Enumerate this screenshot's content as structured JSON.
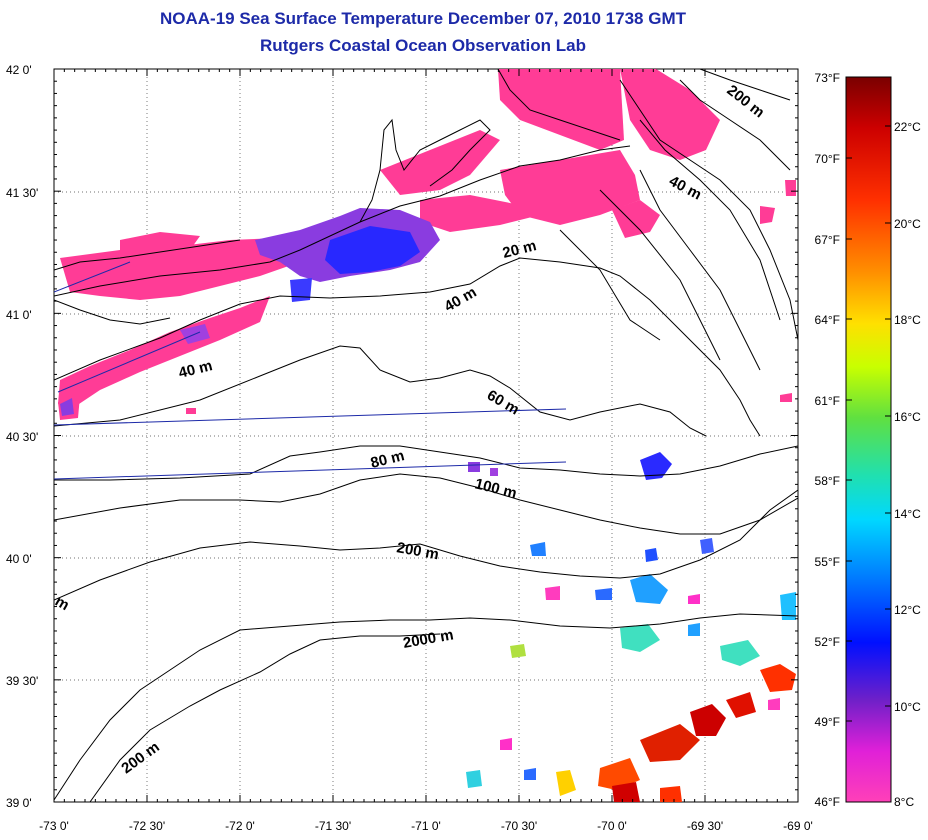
{
  "title": "NOAA-19 Sea Surface Temperature December 07, 2010 1738 GMT",
  "subtitle": "Rutgers Coastal Ocean Observation Lab",
  "lat_ticks": [
    "42 0'",
    "41 30'",
    "41 0'",
    "40 30'",
    "40 0'",
    "39 30'",
    "39 0'"
  ],
  "lon_ticks": [
    "-73 0'",
    "-72 30'",
    "-72 0'",
    "-71 30'",
    "-71 0'",
    "-70 30'",
    "-70 0'",
    "-69 30'",
    "-69 0'"
  ],
  "fahrenheit_ticks": [
    "73°F",
    "70°F",
    "67°F",
    "64°F",
    "61°F",
    "58°F",
    "55°F",
    "52°F",
    "49°F",
    "46°F"
  ],
  "celsius_ticks": [
    "22°C",
    "20°C",
    "18°C",
    "16°C",
    "14°C",
    "12°C",
    "10°C",
    "8°C"
  ],
  "contour_labels": [
    "200 m",
    "40 m",
    "20 m",
    "40 m",
    "40 m",
    "60 m",
    "80 m",
    "100 m",
    "200 m",
    "2000 m",
    "200 m",
    "m"
  ],
  "colorbar_colors": [
    "#8b0000",
    "#d80000",
    "#ff3300",
    "#ff8800",
    "#ffd000",
    "#e8ff00",
    "#8fe000",
    "#40e060",
    "#20e0c0",
    "#00c8ff",
    "#0080ff",
    "#0010ff",
    "#6a2ad0",
    "#c020e0",
    "#ff30c8",
    "#ff3cbe"
  ],
  "sst_colors": {
    "warm_pink": "#ff3c96",
    "cool_blue": "#2828ff",
    "mid_purple": "#8a3ce0"
  }
}
